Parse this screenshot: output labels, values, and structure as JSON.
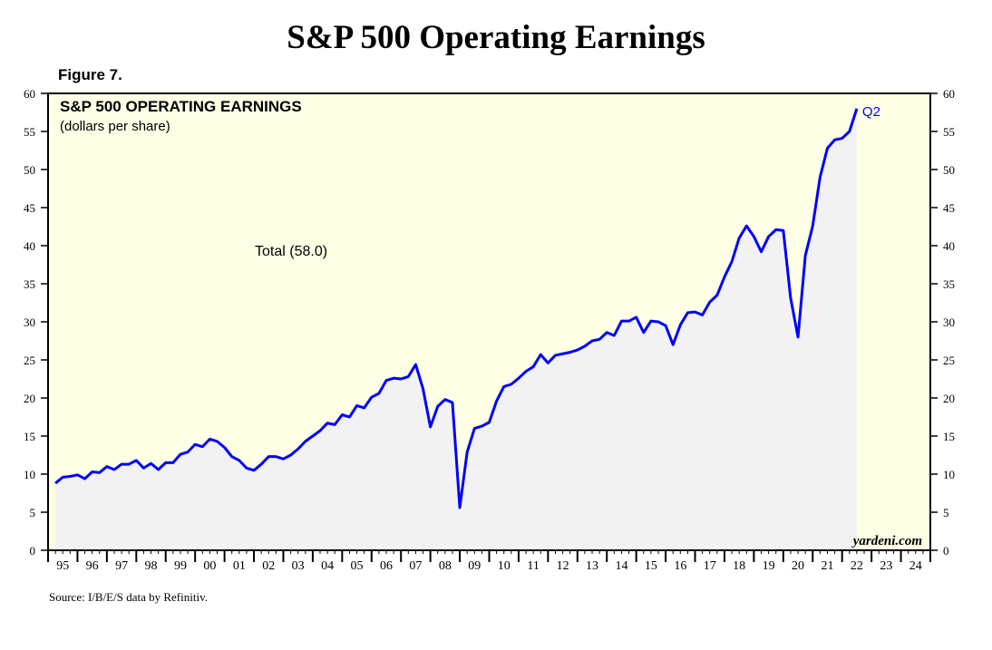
{
  "header": {
    "title": "S&P 500 Operating Earnings",
    "figure_label": "Figure 7."
  },
  "footer": {
    "source": "Source: I/B/E/S data by Refinitiv."
  },
  "colors": {
    "line": "#0000ff",
    "plot_bg": "#ffffe6",
    "area_fill": "#f2f2f2"
  },
  "chart_data": {
    "type": "area",
    "title": "S&P 500 OPERATING EARNINGS",
    "subtitle": "(dollars per share)",
    "series_label": "Total (58.0)",
    "last_point_label": "Q2",
    "watermark": "yardeni.com",
    "ylim": [
      0,
      60
    ],
    "yticks": [
      0,
      5,
      10,
      15,
      20,
      25,
      30,
      35,
      40,
      45,
      50,
      55,
      60
    ],
    "xlim": [
      1995,
      2025
    ],
    "xtick_labels": [
      "95",
      "96",
      "97",
      "98",
      "99",
      "00",
      "01",
      "02",
      "03",
      "04",
      "05",
      "06",
      "07",
      "08",
      "09",
      "10",
      "11",
      "12",
      "13",
      "14",
      "15",
      "16",
      "17",
      "18",
      "19",
      "20",
      "21",
      "22",
      "23",
      "24"
    ],
    "frequency": "quarterly",
    "start": "1995 Q1",
    "end": "2022 Q2",
    "values": [
      8.8,
      9.6,
      9.7,
      9.9,
      9.4,
      10.3,
      10.2,
      11.0,
      10.6,
      11.3,
      11.3,
      11.8,
      10.8,
      11.4,
      10.6,
      11.5,
      11.5,
      12.6,
      12.9,
      13.9,
      13.6,
      14.6,
      14.3,
      13.5,
      12.3,
      11.8,
      10.8,
      10.5,
      11.3,
      12.3,
      12.3,
      12.0,
      12.5,
      13.3,
      14.3,
      15.0,
      15.7,
      16.7,
      16.5,
      17.8,
      17.5,
      19.0,
      18.7,
      20.1,
      20.6,
      22.3,
      22.6,
      22.5,
      22.8,
      24.4,
      21.2,
      16.2,
      18.9,
      19.8,
      19.4,
      5.6,
      12.9,
      16.0,
      16.3,
      16.8,
      19.6,
      21.5,
      21.8,
      22.6,
      23.5,
      24.1,
      25.7,
      24.6,
      25.6,
      25.8,
      26.0,
      26.3,
      26.8,
      27.5,
      27.7,
      28.6,
      28.2,
      30.1,
      30.1,
      30.6,
      28.6,
      30.1,
      30.0,
      29.5,
      27.0,
      29.6,
      31.2,
      31.3,
      30.9,
      32.6,
      33.5,
      35.9,
      37.9,
      41.0,
      42.6,
      41.2,
      39.2,
      41.2,
      42.1,
      42.0,
      33.1,
      28.0,
      38.7,
      42.6,
      49.0,
      52.8,
      53.9,
      54.1,
      55.0,
      58.0
    ],
    "grid": false
  }
}
